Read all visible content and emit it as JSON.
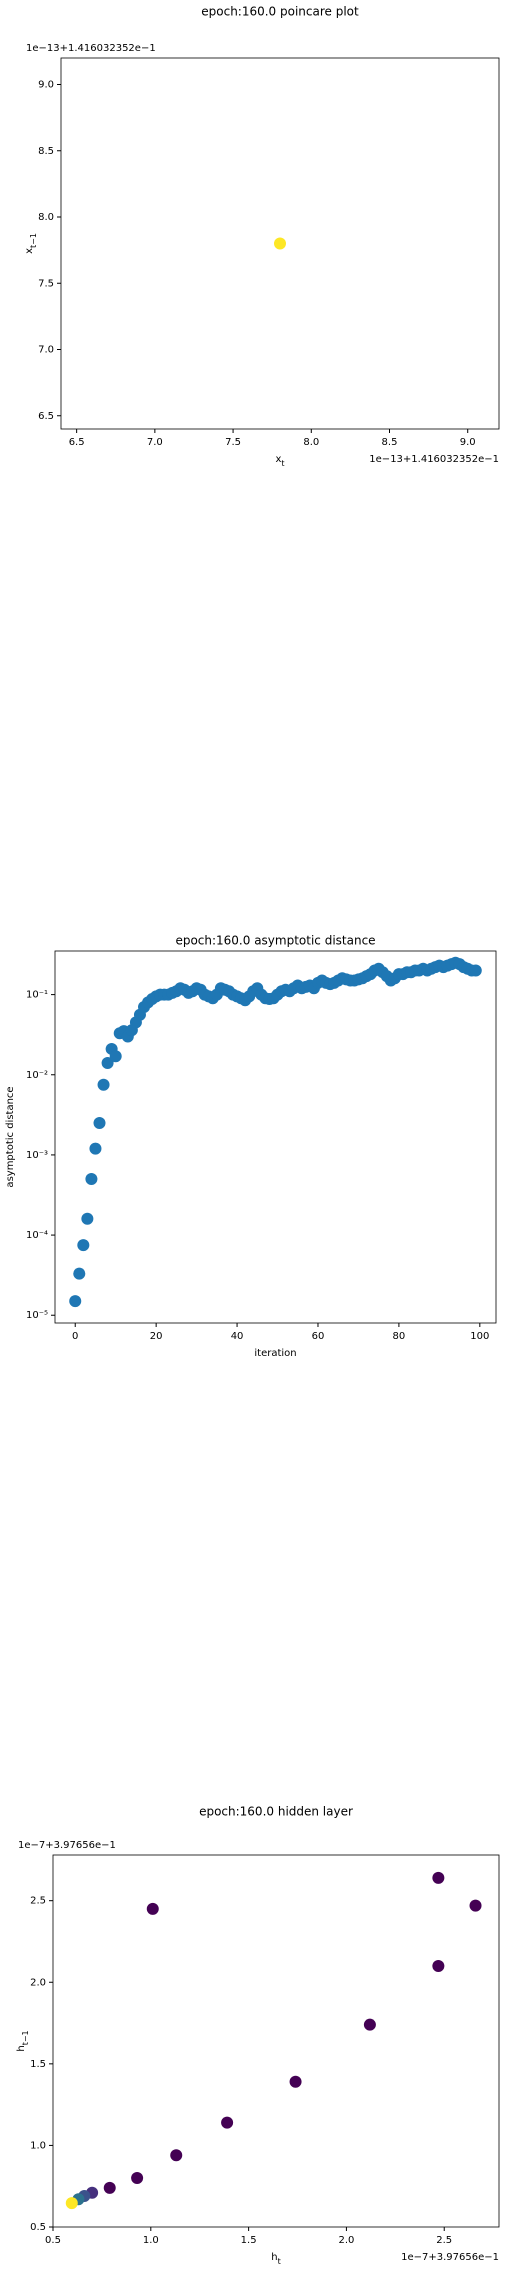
{
  "chart_data": [
    {
      "type": "scatter",
      "title": "epoch:160.0 poincare plot",
      "xlabel": "x",
      "xlabel_sub": "t",
      "ylabel": "x",
      "ylabel_sub": "t−1",
      "x_offset": "1e−13+1.416032352e−1",
      "y_offset": "1e−13+1.416032352e−1",
      "x": [
        7.8
      ],
      "values": [
        7.8
      ],
      "colors": [
        "#fde725"
      ],
      "xlim": [
        6.4,
        9.2
      ],
      "ylim": [
        6.4,
        9.2
      ],
      "xticks": [
        6.5,
        {
          "value": 7,
          "label": "7.0"
        },
        7.5,
        {
          "value": 8,
          "label": "8.0"
        },
        8.5,
        {
          "value": 9,
          "label": "9.0"
        }
      ],
      "yticks": [
        6.5,
        {
          "value": 7,
          "label": "7.0"
        },
        7.5,
        {
          "value": 8,
          "label": "8.0"
        },
        8.5,
        {
          "value": 9,
          "label": "9.0"
        }
      ]
    },
    {
      "type": "scatter",
      "title": "epoch:160.0 asymptotic distance",
      "xlabel": "iteration",
      "ylabel": "asymptotic distance",
      "log_y": true,
      "color": "#1f77b4",
      "x": [
        0,
        1,
        2,
        3,
        4,
        5,
        6,
        7,
        8,
        9,
        10,
        11,
        12,
        13,
        14,
        15,
        16,
        17,
        18,
        19,
        20,
        21,
        22,
        23,
        24,
        25,
        26,
        27,
        28,
        29,
        30,
        31,
        32,
        33,
        34,
        35,
        36,
        37,
        38,
        39,
        40,
        41,
        42,
        43,
        44,
        45,
        46,
        47,
        48,
        49,
        50,
        51,
        52,
        53,
        54,
        55,
        56,
        57,
        58,
        59,
        60,
        61,
        62,
        63,
        64,
        65,
        66,
        67,
        68,
        69,
        70,
        71,
        72,
        73,
        74,
        75,
        76,
        77,
        78,
        79,
        80,
        81,
        82,
        83,
        84,
        85,
        86,
        87,
        88,
        89,
        90,
        91,
        92,
        93,
        94,
        95,
        96,
        97,
        98,
        99
      ],
      "values": [
        1.5e-05,
        3.3e-05,
        7.5e-05,
        0.00016,
        0.0005,
        0.0012,
        0.0025,
        0.0075,
        0.014,
        0.021,
        0.017,
        0.033,
        0.035,
        0.03,
        0.036,
        0.045,
        0.056,
        0.07,
        0.08,
        0.088,
        0.095,
        0.1,
        0.1,
        0.1,
        0.105,
        0.11,
        0.12,
        0.115,
        0.105,
        0.11,
        0.12,
        0.115,
        0.1,
        0.095,
        0.09,
        0.1,
        0.12,
        0.115,
        0.11,
        0.1,
        0.095,
        0.09,
        0.085,
        0.095,
        0.11,
        0.12,
        0.1,
        0.09,
        0.088,
        0.09,
        0.1,
        0.11,
        0.115,
        0.11,
        0.12,
        0.13,
        0.12,
        0.125,
        0.13,
        0.12,
        0.14,
        0.15,
        0.14,
        0.135,
        0.14,
        0.15,
        0.16,
        0.155,
        0.15,
        0.15,
        0.155,
        0.16,
        0.17,
        0.18,
        0.2,
        0.21,
        0.19,
        0.17,
        0.15,
        0.16,
        0.18,
        0.18,
        0.19,
        0.19,
        0.2,
        0.2,
        0.21,
        0.2,
        0.21,
        0.22,
        0.23,
        0.22,
        0.23,
        0.24,
        0.25,
        0.24,
        0.22,
        0.21,
        0.2,
        0.2
      ],
      "xlim": [
        -5,
        104
      ],
      "ylim": [
        8e-06,
        0.35
      ],
      "xticks": [
        0,
        20,
        40,
        60,
        80,
        100
      ],
      "yticks": [
        {
          "value": 1e-05,
          "label": "10⁻⁵"
        },
        {
          "value": 0.0001,
          "label": "10⁻⁴"
        },
        {
          "value": 0.001,
          "label": "10⁻³"
        },
        {
          "value": 0.01,
          "label": "10⁻²"
        },
        {
          "value": 0.1,
          "label": "10⁻¹"
        }
      ]
    },
    {
      "type": "scatter",
      "title": "epoch:160.0 hidden layer",
      "xlabel": "h",
      "xlabel_sub": "t",
      "ylabel": "h",
      "ylabel_sub": "t−1",
      "x_offset": "1e−7+3.97656e−1",
      "y_offset": "1e−7+3.97656e−1",
      "x": [
        2.47,
        2.66,
        1.01,
        2.47,
        2.12,
        1.74,
        1.39,
        1.13,
        0.93,
        0.79,
        0.7,
        0.66,
        0.63,
        0.596
      ],
      "values": [
        2.64,
        2.47,
        2.45,
        2.1,
        1.74,
        1.39,
        1.14,
        0.94,
        0.8,
        0.74,
        0.71,
        0.69,
        0.67,
        0.646
      ],
      "colors": [
        "#440154",
        "#440154",
        "#440154",
        "#440154",
        "#440154",
        "#440154",
        "#440154",
        "#440154",
        "#440154",
        "#440154",
        "#46307e",
        "#3b528b",
        "#2c728e",
        "#fde725"
      ],
      "xlim": [
        0.5,
        2.78
      ],
      "ylim": [
        0.5,
        2.78
      ],
      "xticks": [
        0.5,
        {
          "value": 1,
          "label": "1.0"
        },
        1.5,
        {
          "value": 2,
          "label": "2.0"
        },
        2.5
      ],
      "yticks": [
        0.5,
        {
          "value": 1,
          "label": "1.0"
        },
        1.5,
        {
          "value": 2,
          "label": "2.0"
        },
        2.5
      ]
    }
  ]
}
